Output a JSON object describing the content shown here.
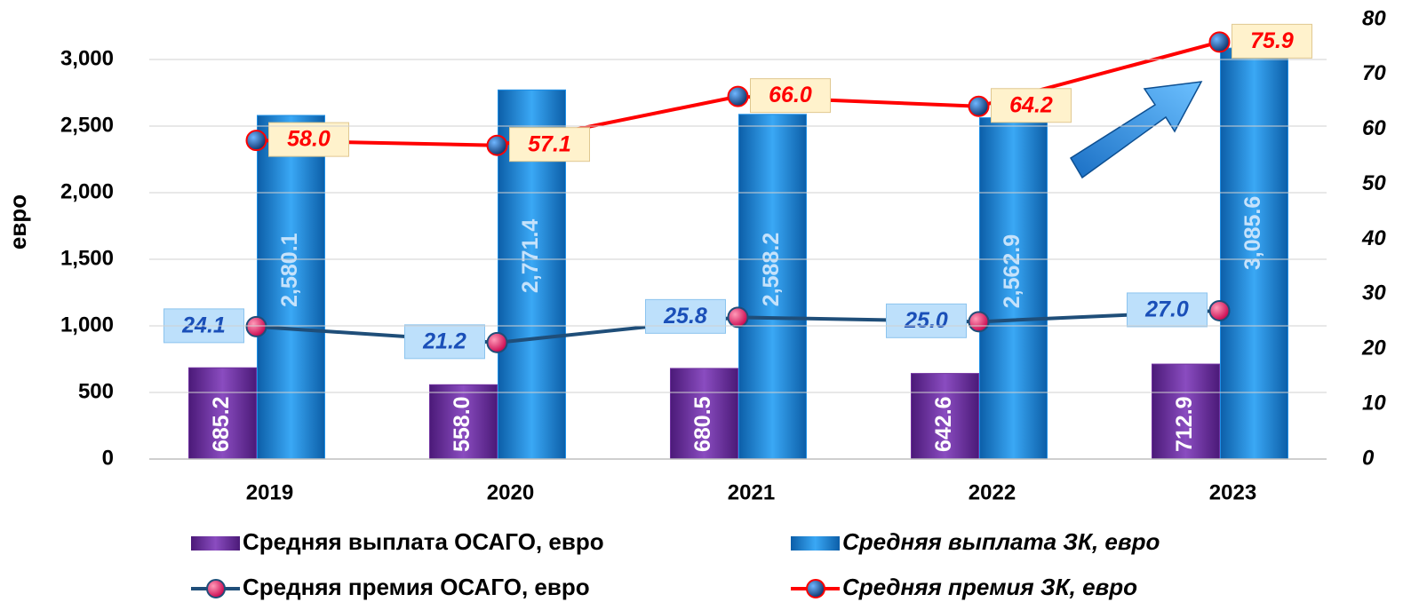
{
  "chart_data": {
    "type": "bar-line",
    "y_label": "евро",
    "categories": [
      "2019",
      "2020",
      "2021",
      "2022",
      "2023"
    ],
    "series": [
      {
        "name": "Средняя выплата ОСАГО, евро",
        "type": "bar",
        "color": "#7030a0",
        "values": [
          685.2,
          558.0,
          680.5,
          642.6,
          712.9
        ],
        "value_labels": [
          "685.2",
          "558.0",
          "680.5",
          "642.6",
          "712.9"
        ]
      },
      {
        "name": "Средняя выплата ЗК, евро",
        "type": "bar",
        "color": "#1e8fe6",
        "values": [
          2580.1,
          2771.4,
          2588.2,
          2562.9,
          3085.6
        ],
        "value_labels": [
          "2,580.1",
          "2,771.4",
          "2,588.2",
          "2,562.9",
          "3,085.6"
        ]
      },
      {
        "name": "Средняя премия ОСАГО, евро",
        "type": "line",
        "axis": "y2",
        "color": "#1f4e79",
        "values": [
          24.1,
          21.2,
          25.8,
          25.0,
          27.0
        ],
        "value_labels": [
          "24.1",
          "21.2",
          "25.8",
          "25.0",
          "27.0"
        ]
      },
      {
        "name": "Средняя премия ЗК, евро",
        "type": "line",
        "axis": "y2",
        "color": "#ff0000",
        "values": [
          58.0,
          57.1,
          66.0,
          64.2,
          75.9
        ],
        "value_labels": [
          "58.0",
          "57.1",
          "66.0",
          "64.2",
          "75.9"
        ]
      }
    ],
    "ylim": [
      0,
      3300
    ],
    "yticks": [
      0,
      500,
      {
        "value": 1000,
        "label": "1,000"
      },
      {
        "value": 1500,
        "label": "1,500"
      },
      {
        "value": 2000,
        "label": "2,000"
      },
      {
        "value": 2500,
        "label": "2,500"
      },
      {
        "value": 3000,
        "label": "3,000"
      }
    ],
    "y2lim": [
      0,
      80
    ],
    "y2ticks": [
      0,
      10,
      20,
      30,
      40,
      50,
      60,
      70,
      80
    ],
    "grid": true
  }
}
